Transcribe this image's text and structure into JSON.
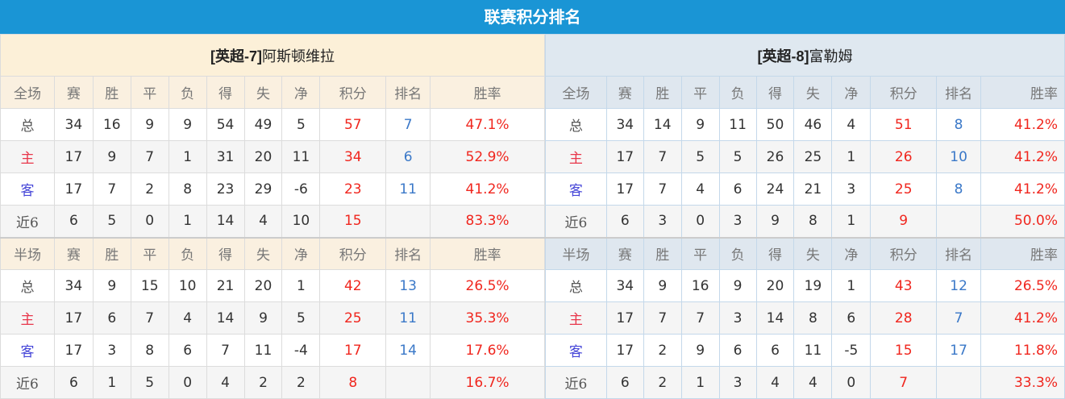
{
  "title": "联赛积分排名",
  "columns": [
    "赛",
    "胜",
    "平",
    "负",
    "得",
    "失",
    "净",
    "积分",
    "排名",
    "胜率"
  ],
  "teams": [
    {
      "name_prefix": "[英超-7]",
      "name": "阿斯顿维拉",
      "full": {
        "label": "全场",
        "rows": [
          {
            "label": "总",
            "type": "total",
            "values": [
              "34",
              "16",
              "9",
              "9",
              "54",
              "49",
              "5",
              "57",
              "7",
              "47.1%"
            ]
          },
          {
            "label": "主",
            "type": "home",
            "values": [
              "17",
              "9",
              "7",
              "1",
              "31",
              "20",
              "11",
              "34",
              "6",
              "52.9%"
            ]
          },
          {
            "label": "客",
            "type": "away",
            "values": [
              "17",
              "7",
              "2",
              "8",
              "23",
              "29",
              "-6",
              "23",
              "11",
              "41.2%"
            ]
          },
          {
            "label": "近6",
            "type": "recent",
            "values": [
              "6",
              "5",
              "0",
              "1",
              "14",
              "4",
              "10",
              "15",
              "",
              "83.3%"
            ]
          }
        ]
      },
      "half": {
        "label": "半场",
        "rows": [
          {
            "label": "总",
            "type": "total",
            "values": [
              "34",
              "9",
              "15",
              "10",
              "21",
              "20",
              "1",
              "42",
              "13",
              "26.5%"
            ]
          },
          {
            "label": "主",
            "type": "home",
            "values": [
              "17",
              "6",
              "7",
              "4",
              "14",
              "9",
              "5",
              "25",
              "11",
              "35.3%"
            ]
          },
          {
            "label": "客",
            "type": "away",
            "values": [
              "17",
              "3",
              "8",
              "6",
              "7",
              "11",
              "-4",
              "17",
              "14",
              "17.6%"
            ]
          },
          {
            "label": "近6",
            "type": "recent",
            "values": [
              "6",
              "1",
              "5",
              "0",
              "4",
              "2",
              "2",
              "8",
              "",
              "16.7%"
            ]
          }
        ]
      }
    },
    {
      "name_prefix": "[英超-8]",
      "name": "富勒姆",
      "full": {
        "label": "全场",
        "rows": [
          {
            "label": "总",
            "type": "total",
            "values": [
              "34",
              "14",
              "9",
              "11",
              "50",
              "46",
              "4",
              "51",
              "8",
              "41.2%"
            ]
          },
          {
            "label": "主",
            "type": "home",
            "values": [
              "17",
              "7",
              "5",
              "5",
              "26",
              "25",
              "1",
              "26",
              "10",
              "41.2%"
            ]
          },
          {
            "label": "客",
            "type": "away",
            "values": [
              "17",
              "7",
              "4",
              "6",
              "24",
              "21",
              "3",
              "25",
              "8",
              "41.2%"
            ]
          },
          {
            "label": "近6",
            "type": "recent",
            "values": [
              "6",
              "3",
              "0",
              "3",
              "9",
              "8",
              "1",
              "9",
              "",
              "50.0%"
            ]
          }
        ]
      },
      "half": {
        "label": "半场",
        "rows": [
          {
            "label": "总",
            "type": "total",
            "values": [
              "34",
              "9",
              "16",
              "9",
              "20",
              "19",
              "1",
              "43",
              "12",
              "26.5%"
            ]
          },
          {
            "label": "主",
            "type": "home",
            "values": [
              "17",
              "7",
              "7",
              "3",
              "14",
              "8",
              "6",
              "28",
              "7",
              "41.2%"
            ]
          },
          {
            "label": "客",
            "type": "away",
            "values": [
              "17",
              "2",
              "9",
              "6",
              "6",
              "11",
              "-5",
              "15",
              "17",
              "11.8%"
            ]
          },
          {
            "label": "近6",
            "type": "recent",
            "values": [
              "6",
              "2",
              "1",
              "3",
              "4",
              "4",
              "0",
              "7",
              "",
              "33.3%"
            ]
          }
        ]
      }
    }
  ],
  "colors": {
    "title_bar": "#1a95d5",
    "points": "#f0261e",
    "rank": "#3a78c8",
    "home": "#e8364a",
    "away": "#4646d8"
  }
}
